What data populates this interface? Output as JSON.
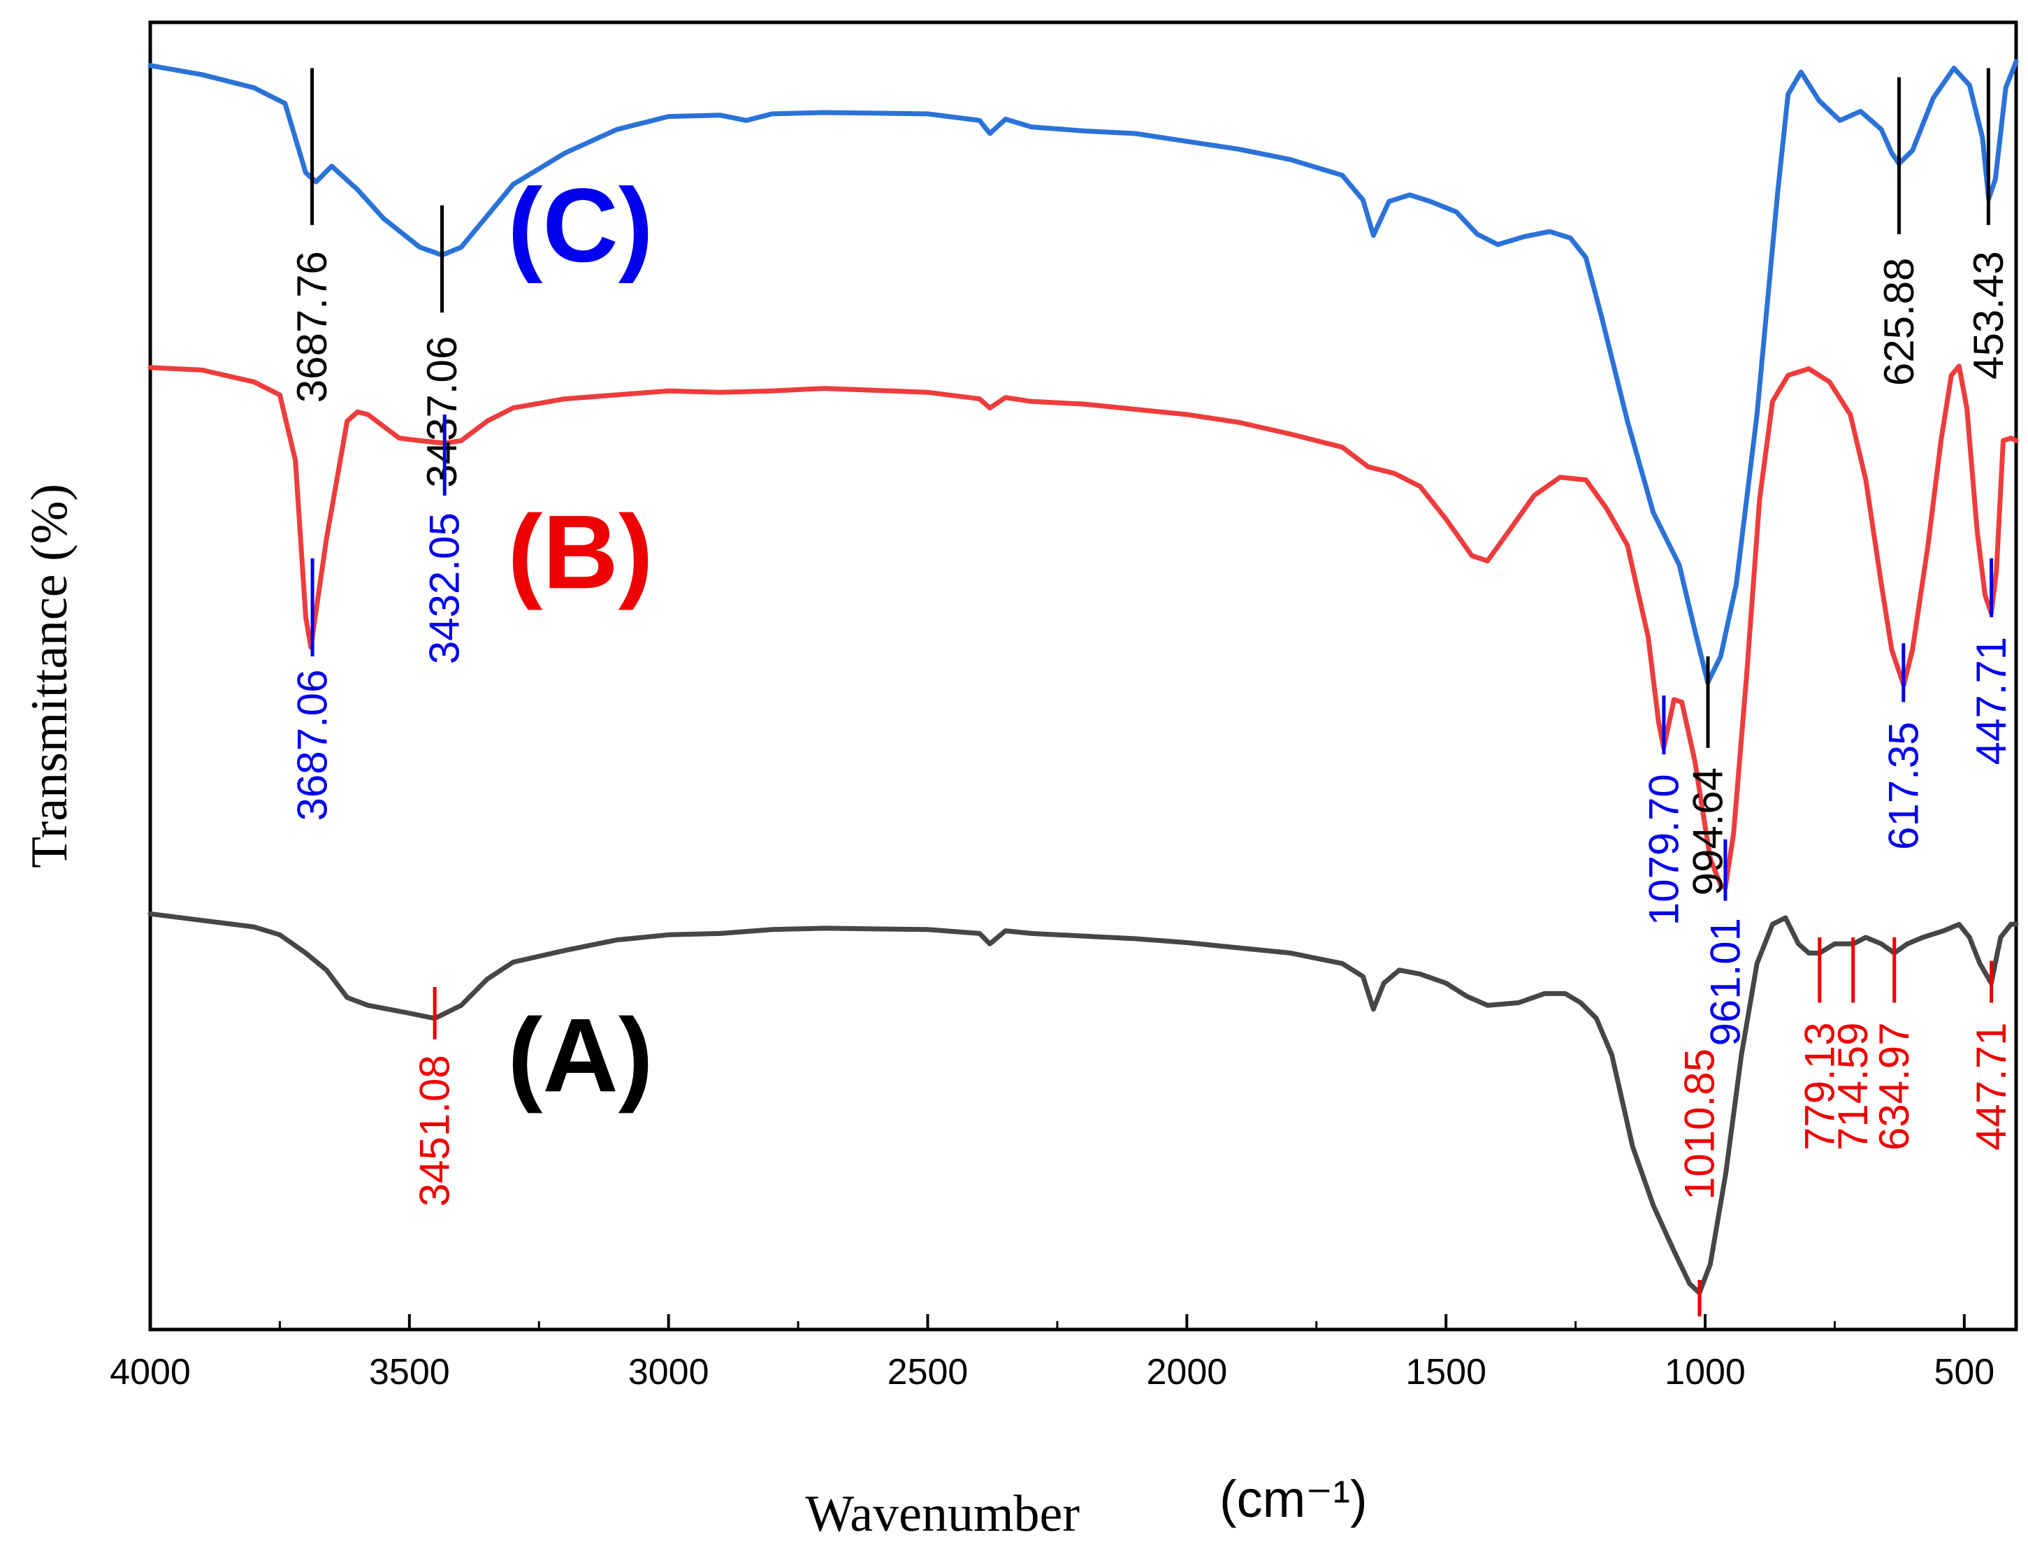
{
  "chart_data": {
    "type": "line",
    "title": "",
    "xlabel": "Wavenumber",
    "xunit": "(cm⁻¹)",
    "ylabel": "Transmittance (%)",
    "xlim": [
      4000,
      400
    ],
    "x_major_ticks": [
      4000,
      3500,
      3000,
      2500,
      2000,
      1500,
      1000,
      500
    ],
    "x_minor_ticks": [
      3750,
      3250,
      2750,
      2250,
      1750,
      1250,
      750
    ],
    "series": [
      {
        "name": "(C)",
        "color": "#2a72d8",
        "label_color": "#0000ee",
        "label_pos": [
          3170,
          0.155
        ],
        "marker_color": "#000000",
        "label_text_color": "#000000",
        "points": [
          [
            4000,
            0.033
          ],
          [
            3900,
            0.04
          ],
          [
            3800,
            0.05
          ],
          [
            3740,
            0.062
          ],
          [
            3700,
            0.115
          ],
          [
            3680,
            0.122
          ],
          [
            3650,
            0.11
          ],
          [
            3600,
            0.128
          ],
          [
            3550,
            0.15
          ],
          [
            3480,
            0.172
          ],
          [
            3437,
            0.178
          ],
          [
            3400,
            0.172
          ],
          [
            3350,
            0.148
          ],
          [
            3300,
            0.124
          ],
          [
            3200,
            0.1
          ],
          [
            3100,
            0.082
          ],
          [
            3000,
            0.072
          ],
          [
            2900,
            0.071
          ],
          [
            2850,
            0.075
          ],
          [
            2800,
            0.07
          ],
          [
            2700,
            0.069
          ],
          [
            2500,
            0.07
          ],
          [
            2400,
            0.075
          ],
          [
            2380,
            0.085
          ],
          [
            2350,
            0.074
          ],
          [
            2300,
            0.08
          ],
          [
            2200,
            0.083
          ],
          [
            2100,
            0.085
          ],
          [
            2000,
            0.091
          ],
          [
            1900,
            0.097
          ],
          [
            1800,
            0.105
          ],
          [
            1700,
            0.117
          ],
          [
            1660,
            0.136
          ],
          [
            1640,
            0.163
          ],
          [
            1610,
            0.137
          ],
          [
            1570,
            0.132
          ],
          [
            1530,
            0.137
          ],
          [
            1480,
            0.145
          ],
          [
            1440,
            0.162
          ],
          [
            1400,
            0.17
          ],
          [
            1350,
            0.164
          ],
          [
            1300,
            0.16
          ],
          [
            1260,
            0.165
          ],
          [
            1230,
            0.18
          ],
          [
            1200,
            0.225
          ],
          [
            1150,
            0.305
          ],
          [
            1100,
            0.375
          ],
          [
            1050,
            0.415
          ],
          [
            1020,
            0.465
          ],
          [
            995,
            0.505
          ],
          [
            970,
            0.485
          ],
          [
            940,
            0.43
          ],
          [
            900,
            0.3
          ],
          [
            860,
            0.13
          ],
          [
            840,
            0.055
          ],
          [
            815,
            0.038
          ],
          [
            780,
            0.06
          ],
          [
            740,
            0.075
          ],
          [
            700,
            0.068
          ],
          [
            660,
            0.082
          ],
          [
            640,
            0.1
          ],
          [
            626,
            0.108
          ],
          [
            600,
            0.098
          ],
          [
            560,
            0.058
          ],
          [
            520,
            0.035
          ],
          [
            490,
            0.048
          ],
          [
            465,
            0.088
          ],
          [
            453,
            0.135
          ],
          [
            440,
            0.12
          ],
          [
            420,
            0.05
          ],
          [
            400,
            0.03
          ]
        ],
        "peaks": [
          {
            "wn": 3687.76,
            "label": "3687.76",
            "y0": 0.035,
            "y1": 0.155,
            "text_from": 0.175
          },
          {
            "wn": 3437.06,
            "label": "3437.06",
            "y0": 0.14,
            "y1": 0.222,
            "text_from": 0.24
          },
          {
            "wn": 994.64,
            "label": "994.64",
            "y0": 0.485,
            "y1": 0.555,
            "text_from": 0.57
          },
          {
            "wn": 625.88,
            "label": "625.88",
            "y0": 0.042,
            "y1": 0.162,
            "text_from": 0.18
          },
          {
            "wn": 453.43,
            "label": "453.43",
            "y0": 0.035,
            "y1": 0.155,
            "text_from": 0.175
          }
        ]
      },
      {
        "name": "(B)",
        "color": "#ee3c3c",
        "label_color": "#ee0000",
        "label_pos": [
          3170,
          0.405
        ],
        "marker_color": "#0000ee",
        "label_text_color": "#0000ee",
        "points": [
          [
            4000,
            0.264
          ],
          [
            3900,
            0.266
          ],
          [
            3800,
            0.275
          ],
          [
            3750,
            0.285
          ],
          [
            3720,
            0.335
          ],
          [
            3700,
            0.455
          ],
          [
            3690,
            0.478
          ],
          [
            3680,
            0.45
          ],
          [
            3660,
            0.395
          ],
          [
            3620,
            0.305
          ],
          [
            3600,
            0.298
          ],
          [
            3580,
            0.3
          ],
          [
            3520,
            0.318
          ],
          [
            3480,
            0.32
          ],
          [
            3432,
            0.322
          ],
          [
            3400,
            0.32
          ],
          [
            3350,
            0.305
          ],
          [
            3300,
            0.295
          ],
          [
            3200,
            0.288
          ],
          [
            3100,
            0.285
          ],
          [
            3000,
            0.282
          ],
          [
            2900,
            0.283
          ],
          [
            2800,
            0.282
          ],
          [
            2700,
            0.28
          ],
          [
            2500,
            0.283
          ],
          [
            2400,
            0.288
          ],
          [
            2380,
            0.295
          ],
          [
            2350,
            0.287
          ],
          [
            2300,
            0.29
          ],
          [
            2200,
            0.292
          ],
          [
            2100,
            0.296
          ],
          [
            2000,
            0.3
          ],
          [
            1900,
            0.306
          ],
          [
            1800,
            0.315
          ],
          [
            1700,
            0.325
          ],
          [
            1650,
            0.34
          ],
          [
            1600,
            0.345
          ],
          [
            1550,
            0.355
          ],
          [
            1500,
            0.38
          ],
          [
            1450,
            0.408
          ],
          [
            1420,
            0.412
          ],
          [
            1380,
            0.39
          ],
          [
            1330,
            0.362
          ],
          [
            1280,
            0.348
          ],
          [
            1230,
            0.35
          ],
          [
            1190,
            0.372
          ],
          [
            1150,
            0.4
          ],
          [
            1110,
            0.47
          ],
          [
            1090,
            0.535
          ],
          [
            1080,
            0.555
          ],
          [
            1060,
            0.518
          ],
          [
            1045,
            0.52
          ],
          [
            1020,
            0.565
          ],
          [
            990,
            0.64
          ],
          [
            970,
            0.66
          ],
          [
            961,
            0.662
          ],
          [
            945,
            0.62
          ],
          [
            920,
            0.5
          ],
          [
            895,
            0.365
          ],
          [
            870,
            0.29
          ],
          [
            840,
            0.27
          ],
          [
            800,
            0.265
          ],
          [
            760,
            0.275
          ],
          [
            720,
            0.3
          ],
          [
            690,
            0.35
          ],
          [
            660,
            0.43
          ],
          [
            640,
            0.48
          ],
          [
            617,
            0.507
          ],
          [
            600,
            0.48
          ],
          [
            570,
            0.4
          ],
          [
            545,
            0.32
          ],
          [
            525,
            0.27
          ],
          [
            510,
            0.263
          ],
          [
            495,
            0.295
          ],
          [
            475,
            0.39
          ],
          [
            460,
            0.438
          ],
          [
            448,
            0.452
          ],
          [
            438,
            0.42
          ],
          [
            425,
            0.32
          ],
          [
            410,
            0.318
          ],
          [
            400,
            0.32
          ]
        ],
        "peaks": [
          {
            "wn": 3687.06,
            "label": "3687.06",
            "y0": 0.41,
            "y1": 0.485,
            "text_from": 0.495
          },
          {
            "wn": 3432.05,
            "label": "3432.05",
            "y0": 0.3,
            "y1": 0.362,
            "text_from": 0.375
          },
          {
            "wn": 1079.7,
            "label": "1079.70",
            "y0": 0.515,
            "y1": 0.56,
            "text_from": 0.575
          },
          {
            "wn": 961.01,
            "label": "961.01",
            "y0": 0.625,
            "y1": 0.672,
            "text_from": 0.685
          },
          {
            "wn": 617.35,
            "label": "617.35",
            "y0": 0.475,
            "y1": 0.52,
            "text_from": 0.535
          },
          {
            "wn": 447.71,
            "label": "447.71",
            "y0": 0.41,
            "y1": 0.455,
            "text_from": 0.47
          }
        ]
      },
      {
        "name": "(A)",
        "color": "#464646",
        "label_color": "#000000",
        "label_pos": [
          3170,
          0.79
        ],
        "marker_color": "#ee0000",
        "label_text_color": "#ee0000",
        "points": [
          [
            4000,
            0.682
          ],
          [
            3900,
            0.687
          ],
          [
            3800,
            0.692
          ],
          [
            3750,
            0.698
          ],
          [
            3700,
            0.712
          ],
          [
            3660,
            0.725
          ],
          [
            3620,
            0.746
          ],
          [
            3580,
            0.752
          ],
          [
            3540,
            0.755
          ],
          [
            3500,
            0.758
          ],
          [
            3451,
            0.762
          ],
          [
            3400,
            0.752
          ],
          [
            3350,
            0.732
          ],
          [
            3300,
            0.719
          ],
          [
            3200,
            0.71
          ],
          [
            3100,
            0.702
          ],
          [
            3000,
            0.698
          ],
          [
            2900,
            0.697
          ],
          [
            2800,
            0.694
          ],
          [
            2700,
            0.693
          ],
          [
            2500,
            0.694
          ],
          [
            2400,
            0.697
          ],
          [
            2380,
            0.705
          ],
          [
            2350,
            0.695
          ],
          [
            2300,
            0.697
          ],
          [
            2200,
            0.699
          ],
          [
            2100,
            0.701
          ],
          [
            2000,
            0.704
          ],
          [
            1900,
            0.708
          ],
          [
            1800,
            0.712
          ],
          [
            1700,
            0.72
          ],
          [
            1660,
            0.73
          ],
          [
            1640,
            0.755
          ],
          [
            1620,
            0.735
          ],
          [
            1590,
            0.725
          ],
          [
            1550,
            0.728
          ],
          [
            1500,
            0.735
          ],
          [
            1460,
            0.745
          ],
          [
            1420,
            0.752
          ],
          [
            1360,
            0.75
          ],
          [
            1310,
            0.743
          ],
          [
            1270,
            0.743
          ],
          [
            1240,
            0.75
          ],
          [
            1210,
            0.762
          ],
          [
            1180,
            0.79
          ],
          [
            1140,
            0.86
          ],
          [
            1100,
            0.905
          ],
          [
            1060,
            0.94
          ],
          [
            1030,
            0.965
          ],
          [
            1011,
            0.972
          ],
          [
            990,
            0.95
          ],
          [
            960,
            0.88
          ],
          [
            930,
            0.79
          ],
          [
            900,
            0.72
          ],
          [
            870,
            0.69
          ],
          [
            845,
            0.685
          ],
          [
            820,
            0.705
          ],
          [
            800,
            0.712
          ],
          [
            779,
            0.712
          ],
          [
            750,
            0.705
          ],
          [
            714,
            0.705
          ],
          [
            690,
            0.7
          ],
          [
            660,
            0.705
          ],
          [
            635,
            0.712
          ],
          [
            610,
            0.705
          ],
          [
            580,
            0.7
          ],
          [
            540,
            0.695
          ],
          [
            510,
            0.69
          ],
          [
            490,
            0.7
          ],
          [
            470,
            0.72
          ],
          [
            448,
            0.735
          ],
          [
            430,
            0.7
          ],
          [
            410,
            0.69
          ],
          [
            400,
            0.69
          ]
        ],
        "peaks": [
          {
            "wn": 3451.08,
            "label": "3451.08",
            "y0": 0.738,
            "y1": 0.778,
            "text_from": 0.79
          },
          {
            "wn": 1010.85,
            "label": "1010.85",
            "y0": 0.962,
            "y1": 0.99,
            "text_from": 0.785
          },
          {
            "wn": 779.13,
            "label": "779.13",
            "y0": 0.7,
            "y1": 0.75,
            "text_from": 0.765
          },
          {
            "wn": 714.59,
            "label": "714.59",
            "y0": 0.7,
            "y1": 0.75,
            "text_from": 0.765
          },
          {
            "wn": 634.97,
            "label": "634.97",
            "y0": 0.7,
            "y1": 0.75,
            "text_from": 0.765
          },
          {
            "wn": 447.71,
            "label": "447.71",
            "y0": 0.718,
            "y1": 0.75,
            "text_from": 0.765
          }
        ]
      }
    ]
  }
}
